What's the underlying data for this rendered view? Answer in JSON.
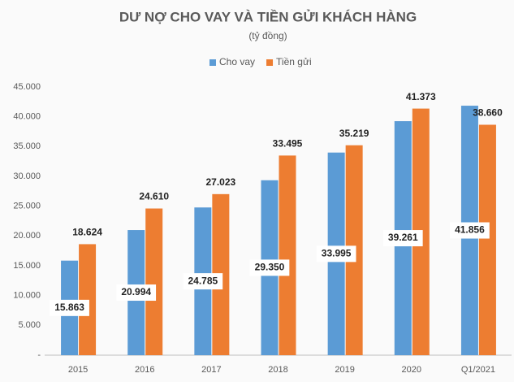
{
  "chart_data": {
    "type": "bar",
    "title": "DƯ NỢ CHO VAY VÀ TIỀN GỬI KHÁCH HÀNG",
    "subtitle": "(tỷ đồng)",
    "categories": [
      "2015",
      "2016",
      "2017",
      "2018",
      "2019",
      "2020",
      "Q1/2021"
    ],
    "series": [
      {
        "name": "Cho vay",
        "color": "#5b9bd5",
        "label_position": "center",
        "values": [
          15863,
          20994,
          24785,
          29350,
          33995,
          39261,
          41856
        ],
        "value_labels": [
          "15.863",
          "20.994",
          "24.785",
          "29.350",
          "33.995",
          "39.261",
          "41.856"
        ]
      },
      {
        "name": "Tiền gửi",
        "color": "#ed7d31",
        "label_position": "outside_end",
        "values": [
          18624,
          24610,
          27023,
          33495,
          35219,
          41373,
          38660
        ],
        "value_labels": [
          "18.624",
          "24.610",
          "27.023",
          "33.495",
          "35.219",
          "41.373",
          "38.660"
        ]
      }
    ],
    "ylim": [
      0,
      45000
    ],
    "yticks": [
      {
        "value": 0,
        "label": "-"
      },
      {
        "value": 5000,
        "label": "5.000"
      },
      {
        "value": 10000,
        "label": "10.000"
      },
      {
        "value": 15000,
        "label": "15.000"
      },
      {
        "value": 20000,
        "label": "20.000"
      },
      {
        "value": 25000,
        "label": "25.000"
      },
      {
        "value": 30000,
        "label": "30.000"
      },
      {
        "value": 35000,
        "label": "35.000"
      },
      {
        "value": 40000,
        "label": "40.000"
      },
      {
        "value": 45000,
        "label": "45.000"
      }
    ],
    "grid": false,
    "legend": "top"
  }
}
